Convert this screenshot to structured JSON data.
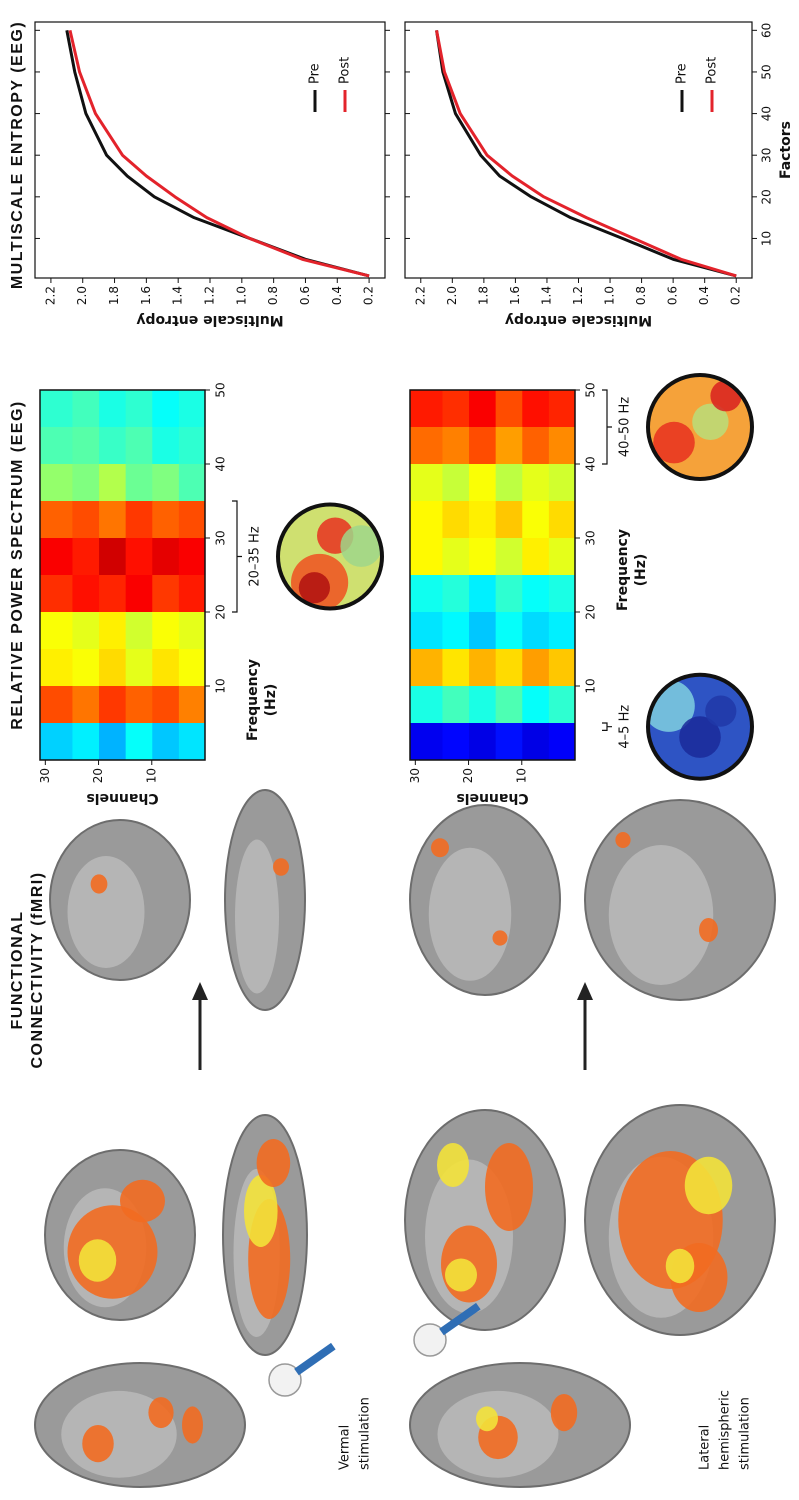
{
  "fmri": {
    "title_lines": [
      "FUNCTIONAL",
      "CONNECTIVITY (fMRI)"
    ],
    "labels": [
      [
        "Vermal",
        "stimulation"
      ],
      [
        "Lateral",
        "hemispheric",
        "stimulation"
      ]
    ]
  },
  "power_title": "RELATIVE POWER SPECTRUM (EEG)",
  "entropy_title": "MULTISCALE ENTROPY (EEG)",
  "chart_data": [
    {
      "type": "heatmap",
      "xlabel": [
        "Frequency",
        "(Hz)"
      ],
      "ylabel": "Channels",
      "xlim": [
        0,
        50
      ],
      "ylim": [
        0,
        31
      ],
      "xticks": [
        10,
        20,
        30,
        40,
        50
      ],
      "yticks": [
        10,
        20,
        30
      ],
      "x_bins": [
        0,
        5,
        10,
        15,
        20,
        25,
        30,
        35,
        40,
        45,
        50
      ],
      "y_bins": [
        0,
        5,
        10,
        15,
        20,
        25,
        31
      ],
      "clim": [
        0,
        1
      ],
      "colormap": "jet",
      "values": [
        [
          0.35,
          0.75,
          0.62,
          0.6,
          0.85,
          0.88,
          0.8,
          0.45,
          0.42,
          0.4
        ],
        [
          0.32,
          0.8,
          0.65,
          0.62,
          0.82,
          0.9,
          0.78,
          0.5,
          0.4,
          0.38
        ],
        [
          0.38,
          0.78,
          0.6,
          0.58,
          0.88,
          0.86,
          0.82,
          0.48,
          0.45,
          0.42
        ],
        [
          0.3,
          0.82,
          0.66,
          0.64,
          0.84,
          0.92,
          0.76,
          0.55,
          0.43,
          0.4
        ],
        [
          0.36,
          0.76,
          0.62,
          0.6,
          0.86,
          0.85,
          0.8,
          0.5,
          0.46,
          0.44
        ],
        [
          0.33,
          0.8,
          0.64,
          0.62,
          0.83,
          0.88,
          0.78,
          0.52,
          0.45,
          0.42
        ]
      ],
      "bands": [
        {
          "range": [
            20,
            35
          ],
          "label": "20–35 Hz"
        }
      ]
    },
    {
      "type": "heatmap",
      "xlabel": [
        "Frequency",
        "(Hz)"
      ],
      "ylabel": "Channels",
      "xlim": [
        0,
        50
      ],
      "ylim": [
        0,
        31
      ],
      "xticks": [
        10,
        20,
        30,
        40,
        50
      ],
      "yticks": [
        10,
        20,
        30
      ],
      "x_bins": [
        0,
        5,
        10,
        15,
        20,
        25,
        30,
        35,
        40,
        45,
        50
      ],
      "y_bins": [
        0,
        5,
        10,
        15,
        20,
        25,
        31
      ],
      "clim": [
        0,
        1
      ],
      "colormap": "jet",
      "values": [
        [
          0.12,
          0.42,
          0.68,
          0.36,
          0.4,
          0.6,
          0.66,
          0.58,
          0.74,
          0.84
        ],
        [
          0.1,
          0.38,
          0.72,
          0.34,
          0.38,
          0.64,
          0.62,
          0.6,
          0.78,
          0.86
        ],
        [
          0.14,
          0.45,
          0.66,
          0.38,
          0.42,
          0.58,
          0.68,
          0.56,
          0.72,
          0.8
        ],
        [
          0.1,
          0.4,
          0.7,
          0.32,
          0.36,
          0.62,
          0.64,
          0.62,
          0.8,
          0.88
        ],
        [
          0.13,
          0.44,
          0.65,
          0.37,
          0.41,
          0.6,
          0.66,
          0.57,
          0.75,
          0.83
        ],
        [
          0.11,
          0.4,
          0.7,
          0.35,
          0.39,
          0.63,
          0.63,
          0.6,
          0.77,
          0.85
        ]
      ],
      "bands": [
        {
          "range": [
            4,
            5
          ],
          "label": "4–5 Hz"
        },
        {
          "range": [
            40,
            50
          ],
          "label": "40–50 Hz"
        }
      ]
    },
    {
      "type": "line",
      "ylabel": "Multiscale entropy",
      "show_xtick_labels": false,
      "x": [
        1,
        5,
        10,
        15,
        20,
        25,
        30,
        40,
        50,
        60
      ],
      "xlim": [
        0.5,
        62
      ],
      "ylim": [
        0.1,
        2.3
      ],
      "xticks": [
        10,
        20,
        30,
        40,
        50,
        60
      ],
      "yticks": [
        0.2,
        0.4,
        0.6,
        0.8,
        {
          "value": 1.0,
          "label": "1.0"
        },
        1.2,
        1.4,
        1.6,
        1.8,
        {
          "value": 2.0,
          "label": "2.0"
        },
        2.2
      ],
      "legend": "lower-right",
      "series": [
        {
          "name": "Pre",
          "color": "#111111",
          "values": [
            0.2,
            0.6,
            0.95,
            1.3,
            1.55,
            1.72,
            1.85,
            1.98,
            2.05,
            2.1
          ]
        },
        {
          "name": "Post",
          "color": "#e3232b",
          "values": [
            0.2,
            0.62,
            0.95,
            1.22,
            1.42,
            1.6,
            1.75,
            1.92,
            2.02,
            2.08
          ]
        }
      ]
    },
    {
      "type": "line",
      "ylabel": "Multiscale entropy",
      "xlabel": "Factors",
      "show_xtick_labels": true,
      "x": [
        1,
        5,
        10,
        15,
        20,
        25,
        30,
        40,
        50,
        60
      ],
      "xlim": [
        0.5,
        62
      ],
      "ylim": [
        0.1,
        2.3
      ],
      "xticks": [
        10,
        20,
        30,
        40,
        50,
        60
      ],
      "yticks": [
        0.2,
        0.4,
        0.6,
        0.8,
        {
          "value": 1.0,
          "label": "1.0"
        },
        1.2,
        1.4,
        1.6,
        1.8,
        {
          "value": 2.0,
          "label": "2.0"
        },
        2.2
      ],
      "legend": "lower-right",
      "series": [
        {
          "name": "Pre",
          "color": "#111111",
          "values": [
            0.2,
            0.6,
            0.92,
            1.25,
            1.5,
            1.7,
            1.82,
            1.98,
            2.06,
            2.1
          ]
        },
        {
          "name": "Post",
          "color": "#e3232b",
          "values": [
            0.2,
            0.55,
            0.85,
            1.15,
            1.42,
            1.62,
            1.78,
            1.95,
            2.05,
            2.1
          ]
        }
      ]
    }
  ]
}
